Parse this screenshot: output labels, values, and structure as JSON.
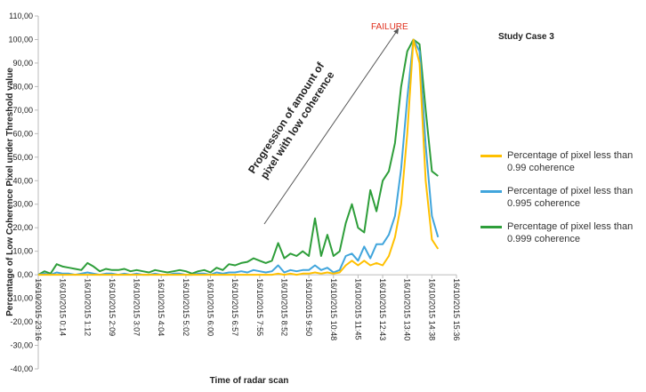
{
  "chart_data": {
    "type": "line",
    "title": "Study Case 3",
    "annotations": [
      "FAILURE",
      "Progression  of amount of",
      "pixel with low coherence"
    ],
    "y_label": "Percentage of Low Coherence Pixel under Threshold value",
    "x_label": "Time of radar scan",
    "categories": [
      "16/10/2015 23:16",
      null,
      null,
      null,
      "16/10/2015 0:14",
      null,
      null,
      null,
      "16/10/2015 1:12",
      null,
      null,
      null,
      "16/10/2015 2:09",
      null,
      null,
      null,
      "16/10/2015 3:07",
      null,
      null,
      null,
      "16/10/2015 4:04",
      null,
      null,
      null,
      "16/10/2015 5:02",
      null,
      null,
      null,
      "16/10/2015 6:00",
      null,
      null,
      null,
      "16/10/2015 6:57",
      null,
      null,
      null,
      "16/10/2015 7:55",
      null,
      null,
      null,
      "16/10/2015 8:52",
      null,
      null,
      null,
      "16/10/2015 9:50",
      null,
      null,
      null,
      "16/10/2015 10:48",
      null,
      null,
      null,
      "16/10/2015 11:45",
      null,
      null,
      null,
      "16/10/2015 12:43",
      null,
      null,
      null,
      "16/10/2015 13:40",
      null,
      null,
      null,
      "16/10/2015 14:38",
      null,
      null,
      null,
      "16/10/2015 15:36"
    ],
    "series": [
      {
        "name": "Percentage of pixel less than 0.99 coherence",
        "color": "#ffc000",
        "values": [
          0,
          0,
          0,
          0,
          0,
          0,
          0,
          0,
          0,
          0,
          0,
          0,
          0,
          0,
          0,
          0,
          0,
          0,
          0,
          0,
          0,
          0,
          0,
          0,
          0,
          0,
          0,
          0,
          0,
          0,
          0,
          0,
          0,
          0,
          0,
          0,
          0,
          0,
          0,
          0.5,
          0,
          0.5,
          0,
          0.5,
          0.5,
          1,
          0.5,
          1,
          0.5,
          1,
          4,
          6,
          4,
          6,
          4,
          5,
          4,
          8,
          16,
          30,
          60,
          100,
          90,
          40,
          15,
          11,
          null,
          null,
          null
        ]
      },
      {
        "name": "Percentage of pixel less than 0.995 coherence",
        "color": "#41a5dc",
        "values": [
          0,
          0.5,
          0,
          1,
          0.5,
          0.5,
          0,
          0.5,
          1,
          0.5,
          0,
          0.5,
          0.5,
          0,
          0.5,
          0,
          0.5,
          0,
          0,
          0.5,
          0,
          0,
          0.5,
          0.5,
          0,
          0,
          0.5,
          0.5,
          0,
          1,
          0.5,
          1,
          1,
          1.5,
          1,
          2,
          1.5,
          1,
          1.5,
          4,
          1,
          2,
          1.5,
          2,
          2,
          4,
          2,
          3,
          1,
          2,
          8,
          9,
          6,
          12,
          7,
          13,
          13,
          17,
          25,
          45,
          75,
          100,
          95,
          55,
          25,
          16,
          null,
          null,
          null
        ]
      },
      {
        "name": "Percentage of pixel less than 0.999 coherence",
        "color": "#2e9e3a",
        "values": [
          0,
          1.5,
          0.5,
          4.5,
          3.5,
          3,
          2.5,
          2,
          5,
          3.5,
          1.5,
          2.5,
          2,
          2,
          2.5,
          1.5,
          2,
          1.5,
          1,
          2,
          1.5,
          1,
          1.5,
          2,
          1.5,
          0.5,
          1.5,
          2,
          1,
          3,
          2,
          4.5,
          4,
          5,
          5.5,
          7,
          6,
          5,
          6,
          13.5,
          7,
          9,
          8,
          10,
          8,
          24,
          8,
          17,
          8,
          10,
          22,
          30,
          20,
          18,
          36,
          27,
          40,
          44,
          56,
          80,
          95,
          100,
          98,
          70,
          44,
          42,
          null,
          null,
          null
        ]
      }
    ],
    "ylim": [
      -40,
      110
    ],
    "yticks": [
      {
        "value": -40,
        "label": "-40,00"
      },
      {
        "value": -30,
        "label": "-30,00"
      },
      {
        "value": -20,
        "label": "-20,00"
      },
      {
        "value": -10,
        "label": "-10,00"
      },
      {
        "value": 0,
        "label": "0,00"
      },
      {
        "value": 10,
        "label": "10,00"
      },
      {
        "value": 20,
        "label": "20,00"
      },
      {
        "value": 30,
        "label": "30,00"
      },
      {
        "value": 40,
        "label": "40,00"
      },
      {
        "value": 50,
        "label": "50,00"
      },
      {
        "value": 60,
        "label": "60,00"
      },
      {
        "value": 70,
        "label": "70,00"
      },
      {
        "value": 80,
        "label": "80,00"
      },
      {
        "value": 90,
        "label": "90,00"
      },
      {
        "value": 100,
        "label": "100,00"
      },
      {
        "value": 110,
        "label": "110,00"
      }
    ],
    "legend": "right"
  }
}
